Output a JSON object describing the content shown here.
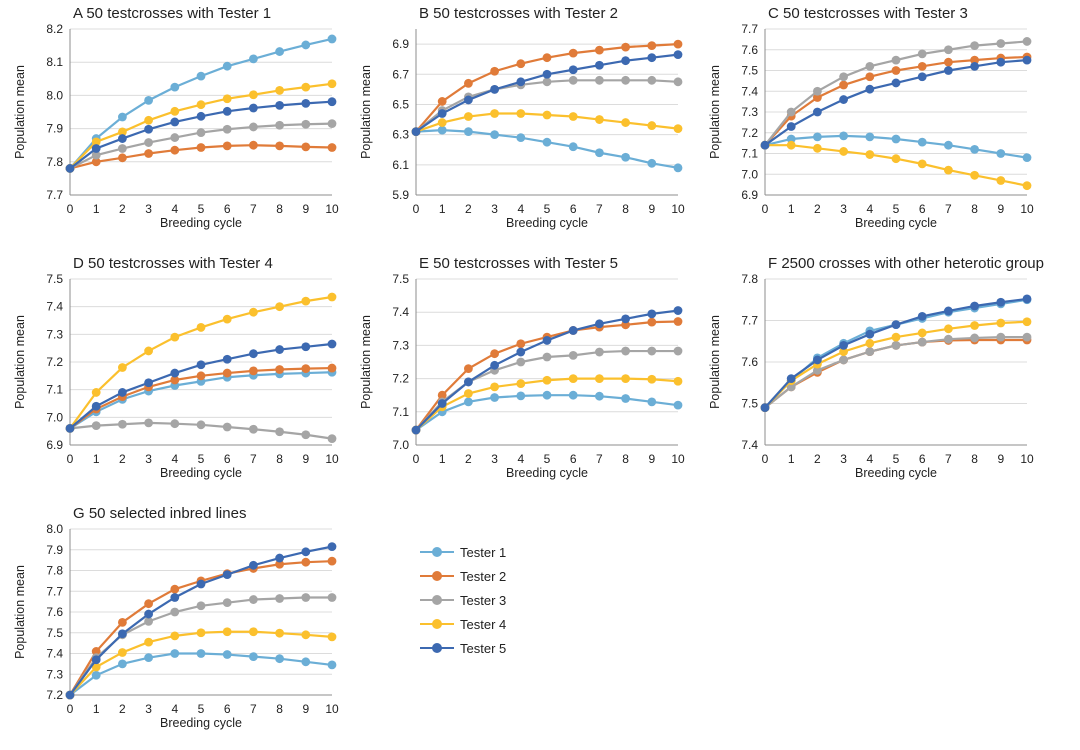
{
  "legend_entries": [
    "Tester 1",
    "Tester 2",
    "Tester 3",
    "Tester 4",
    "Tester 5"
  ],
  "colors": [
    "#6BAED6",
    "#E07B39",
    "#A5A5A5",
    "#FBC02D",
    "#3C69B1"
  ],
  "chart_data": [
    {
      "type": "line",
      "title": "A  50 testcrosses with Tester 1",
      "xlabel": "Breeding cycle",
      "ylabel": "Population mean",
      "x": [
        0,
        1,
        2,
        3,
        4,
        5,
        6,
        7,
        8,
        9,
        10
      ],
      "ylim": [
        7.7,
        8.2
      ],
      "yticks": [
        "7.7",
        "7.8",
        "7.9",
        "8.0",
        "8.1",
        "8.2"
      ],
      "series": [
        {
          "name": "Tester 1",
          "values": [
            7.78,
            7.87,
            7.935,
            7.985,
            8.025,
            8.058,
            8.088,
            8.11,
            8.132,
            8.152,
            8.17
          ]
        },
        {
          "name": "Tester 2",
          "values": [
            7.78,
            7.8,
            7.812,
            7.825,
            7.835,
            7.843,
            7.848,
            7.85,
            7.848,
            7.845,
            7.843
          ]
        },
        {
          "name": "Tester 3",
          "values": [
            7.78,
            7.82,
            7.84,
            7.858,
            7.873,
            7.888,
            7.898,
            7.905,
            7.91,
            7.913,
            7.915
          ]
        },
        {
          "name": "Tester 4",
          "values": [
            7.78,
            7.86,
            7.89,
            7.925,
            7.952,
            7.972,
            7.99,
            8.002,
            8.015,
            8.025,
            8.035
          ]
        },
        {
          "name": "Tester 5",
          "values": [
            7.78,
            7.84,
            7.87,
            7.898,
            7.92,
            7.937,
            7.952,
            7.962,
            7.97,
            7.976,
            7.981
          ]
        }
      ]
    },
    {
      "type": "line",
      "title": "B  50 testcrosses with Tester 2",
      "xlabel": "Breeding cycle",
      "ylabel": "Population mean",
      "x": [
        0,
        1,
        2,
        3,
        4,
        5,
        6,
        7,
        8,
        9,
        10
      ],
      "ylim": [
        5.9,
        7.0
      ],
      "yticks": [
        "5.9",
        "6.1",
        "6.3",
        "6.5",
        "6.7",
        "6.9"
      ],
      "series": [
        {
          "name": "Tester 1",
          "values": [
            6.32,
            6.33,
            6.32,
            6.3,
            6.28,
            6.25,
            6.22,
            6.18,
            6.15,
            6.11,
            6.08
          ]
        },
        {
          "name": "Tester 2",
          "values": [
            6.32,
            6.52,
            6.64,
            6.72,
            6.77,
            6.81,
            6.84,
            6.86,
            6.88,
            6.89,
            6.9
          ]
        },
        {
          "name": "Tester 3",
          "values": [
            6.32,
            6.46,
            6.55,
            6.6,
            6.63,
            6.65,
            6.66,
            6.66,
            6.66,
            6.66,
            6.65
          ]
        },
        {
          "name": "Tester 4",
          "values": [
            6.32,
            6.38,
            6.42,
            6.44,
            6.44,
            6.43,
            6.42,
            6.4,
            6.38,
            6.36,
            6.34
          ]
        },
        {
          "name": "Tester 5",
          "values": [
            6.32,
            6.44,
            6.53,
            6.6,
            6.65,
            6.7,
            6.73,
            6.76,
            6.79,
            6.81,
            6.83
          ]
        }
      ]
    },
    {
      "type": "line",
      "title": "C  50 testcrosses with Tester 3",
      "xlabel": "Breeding cycle",
      "ylabel": "Population mean",
      "x": [
        0,
        1,
        2,
        3,
        4,
        5,
        6,
        7,
        8,
        9,
        10
      ],
      "ylim": [
        6.9,
        7.7
      ],
      "yticks": [
        "6.9",
        "7.0",
        "7.1",
        "7.2",
        "7.3",
        "7.4",
        "7.5",
        "7.6",
        "7.7"
      ],
      "series": [
        {
          "name": "Tester 1",
          "values": [
            7.14,
            7.17,
            7.18,
            7.185,
            7.18,
            7.17,
            7.155,
            7.14,
            7.12,
            7.1,
            7.08
          ]
        },
        {
          "name": "Tester 2",
          "values": [
            7.14,
            7.28,
            7.37,
            7.43,
            7.47,
            7.5,
            7.52,
            7.54,
            7.55,
            7.56,
            7.565
          ]
        },
        {
          "name": "Tester 3",
          "values": [
            7.14,
            7.3,
            7.4,
            7.47,
            7.52,
            7.55,
            7.58,
            7.6,
            7.62,
            7.63,
            7.64
          ]
        },
        {
          "name": "Tester 4",
          "values": [
            7.14,
            7.14,
            7.125,
            7.11,
            7.095,
            7.075,
            7.05,
            7.02,
            6.995,
            6.97,
            6.945
          ]
        },
        {
          "name": "Tester 5",
          "values": [
            7.14,
            7.23,
            7.3,
            7.36,
            7.41,
            7.44,
            7.47,
            7.5,
            7.52,
            7.54,
            7.55
          ]
        }
      ]
    },
    {
      "type": "line",
      "title": "D  50 testcrosses with Tester 4",
      "xlabel": "Breeding cycle",
      "ylabel": "Population mean",
      "x": [
        0,
        1,
        2,
        3,
        4,
        5,
        6,
        7,
        8,
        9,
        10
      ],
      "ylim": [
        6.9,
        7.5
      ],
      "yticks": [
        "6.9",
        "7.0",
        "7.1",
        "7.2",
        "7.3",
        "7.4",
        "7.5"
      ],
      "series": [
        {
          "name": "Tester 1",
          "values": [
            6.96,
            7.02,
            7.065,
            7.095,
            7.115,
            7.13,
            7.145,
            7.152,
            7.157,
            7.16,
            7.163
          ]
        },
        {
          "name": "Tester 2",
          "values": [
            6.96,
            7.03,
            7.075,
            7.11,
            7.135,
            7.15,
            7.16,
            7.168,
            7.173,
            7.176,
            7.178
          ]
        },
        {
          "name": "Tester 3",
          "values": [
            6.96,
            6.97,
            6.975,
            6.98,
            6.977,
            6.973,
            6.965,
            6.957,
            6.948,
            6.937,
            6.923
          ]
        },
        {
          "name": "Tester 4",
          "values": [
            6.96,
            7.09,
            7.18,
            7.24,
            7.29,
            7.325,
            7.355,
            7.38,
            7.4,
            7.42,
            7.435
          ]
        },
        {
          "name": "Tester 5",
          "values": [
            6.96,
            7.04,
            7.09,
            7.125,
            7.16,
            7.19,
            7.21,
            7.23,
            7.245,
            7.255,
            7.265
          ]
        }
      ]
    },
    {
      "type": "line",
      "title": "E  50 testcrosses with Tester 5",
      "xlabel": "Breeding cycle",
      "ylabel": "Population mean",
      "x": [
        0,
        1,
        2,
        3,
        4,
        5,
        6,
        7,
        8,
        9,
        10
      ],
      "ylim": [
        7.0,
        7.5
      ],
      "yticks": [
        "7.0",
        "7.1",
        "7.2",
        "7.3",
        "7.4",
        "7.5"
      ],
      "series": [
        {
          "name": "Tester 1",
          "values": [
            7.045,
            7.1,
            7.13,
            7.143,
            7.148,
            7.15,
            7.15,
            7.147,
            7.14,
            7.13,
            7.12
          ]
        },
        {
          "name": "Tester 2",
          "values": [
            7.045,
            7.15,
            7.23,
            7.275,
            7.305,
            7.325,
            7.345,
            7.355,
            7.362,
            7.37,
            7.372
          ]
        },
        {
          "name": "Tester 3",
          "values": [
            7.045,
            7.13,
            7.19,
            7.225,
            7.25,
            7.265,
            7.27,
            7.28,
            7.283,
            7.283,
            7.283
          ]
        },
        {
          "name": "Tester 4",
          "values": [
            7.045,
            7.115,
            7.155,
            7.175,
            7.185,
            7.195,
            7.2,
            7.2,
            7.2,
            7.198,
            7.192
          ]
        },
        {
          "name": "Tester 5",
          "values": [
            7.045,
            7.125,
            7.19,
            7.24,
            7.28,
            7.315,
            7.345,
            7.365,
            7.38,
            7.395,
            7.405
          ]
        }
      ]
    },
    {
      "type": "line",
      "title": "F 2500 crosses with other heterotic group",
      "xlabel": "Breeding cycle",
      "ylabel": "Population mean",
      "x": [
        0,
        1,
        2,
        3,
        4,
        5,
        6,
        7,
        8,
        9,
        10
      ],
      "ylim": [
        7.4,
        7.8
      ],
      "yticks": [
        "7.4",
        "7.5",
        "7.6",
        "7.7",
        "7.8"
      ],
      "series": [
        {
          "name": "Tester 1",
          "values": [
            7.49,
            7.555,
            7.61,
            7.645,
            7.675,
            7.69,
            7.705,
            7.72,
            7.73,
            7.74,
            7.75
          ]
        },
        {
          "name": "Tester 2",
          "values": [
            7.49,
            7.54,
            7.575,
            7.605,
            7.625,
            7.64,
            7.648,
            7.652,
            7.653,
            7.653,
            7.653
          ]
        },
        {
          "name": "Tester 3",
          "values": [
            7.49,
            7.54,
            7.58,
            7.605,
            7.625,
            7.64,
            7.648,
            7.655,
            7.658,
            7.66,
            7.66
          ]
        },
        {
          "name": "Tester 4",
          "values": [
            7.49,
            7.555,
            7.595,
            7.625,
            7.645,
            7.66,
            7.67,
            7.68,
            7.688,
            7.694,
            7.697
          ]
        },
        {
          "name": "Tester 5",
          "values": [
            7.49,
            7.56,
            7.605,
            7.64,
            7.667,
            7.69,
            7.71,
            7.723,
            7.735,
            7.744,
            7.752
          ]
        }
      ]
    },
    {
      "type": "line",
      "title": "G  50 selected inbred lines",
      "xlabel": "Breeding cycle",
      "ylabel": "Population mean",
      "x": [
        0,
        1,
        2,
        3,
        4,
        5,
        6,
        7,
        8,
        9,
        10
      ],
      "ylim": [
        7.2,
        8.0
      ],
      "yticks": [
        "7.2",
        "7.3",
        "7.4",
        "7.5",
        "7.6",
        "7.7",
        "7.8",
        "7.9",
        "8.0"
      ],
      "series": [
        {
          "name": "Tester 1",
          "values": [
            7.2,
            7.295,
            7.35,
            7.38,
            7.4,
            7.4,
            7.395,
            7.385,
            7.375,
            7.36,
            7.345
          ]
        },
        {
          "name": "Tester 2",
          "values": [
            7.2,
            7.41,
            7.55,
            7.64,
            7.71,
            7.75,
            7.785,
            7.81,
            7.83,
            7.84,
            7.845
          ]
        },
        {
          "name": "Tester 3",
          "values": [
            7.2,
            7.38,
            7.49,
            7.555,
            7.6,
            7.63,
            7.645,
            7.66,
            7.665,
            7.67,
            7.67
          ]
        },
        {
          "name": "Tester 4",
          "values": [
            7.2,
            7.335,
            7.405,
            7.455,
            7.485,
            7.5,
            7.505,
            7.505,
            7.498,
            7.49,
            7.48
          ]
        },
        {
          "name": "Tester 5",
          "values": [
            7.2,
            7.37,
            7.495,
            7.59,
            7.67,
            7.735,
            7.78,
            7.825,
            7.86,
            7.89,
            7.915
          ]
        }
      ]
    }
  ]
}
